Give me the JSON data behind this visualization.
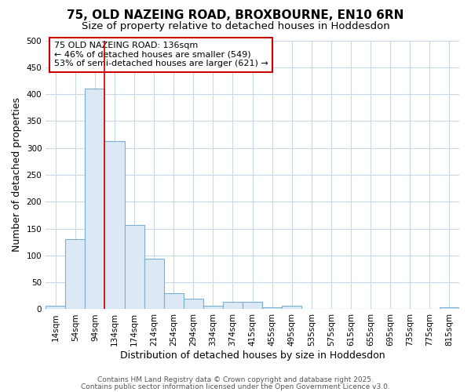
{
  "title1": "75, OLD NAZEING ROAD, BROXBOURNE, EN10 6RN",
  "title2": "Size of property relative to detached houses in Hoddesdon",
  "xlabel": "Distribution of detached houses by size in Hoddesdon",
  "ylabel": "Number of detached properties",
  "bar_labels": [
    "14sqm",
    "54sqm",
    "94sqm",
    "134sqm",
    "174sqm",
    "214sqm",
    "254sqm",
    "294sqm",
    "334sqm",
    "374sqm",
    "415sqm",
    "455sqm",
    "495sqm",
    "535sqm",
    "575sqm",
    "615sqm",
    "655sqm",
    "695sqm",
    "735sqm",
    "775sqm",
    "815sqm"
  ],
  "bar_values": [
    6,
    131,
    410,
    313,
    157,
    94,
    30,
    19,
    7,
    14,
    14,
    4,
    7,
    0,
    0,
    0,
    0,
    0,
    0,
    0,
    4
  ],
  "bar_color": "#dce9f5",
  "bar_edge_color": "#7aafd4",
  "vline_x": 2.5,
  "vline_color": "#cc0000",
  "annotation_text": "75 OLD NAZEING ROAD: 136sqm\n← 46% of detached houses are smaller (549)\n53% of semi-detached houses are larger (621) →",
  "annotation_box_color": "#ffffff",
  "annotation_edge_color": "#cc0000",
  "ylim": [
    0,
    500
  ],
  "yticks": [
    0,
    50,
    100,
    150,
    200,
    250,
    300,
    350,
    400,
    450,
    500
  ],
  "bg_color": "#ffffff",
  "grid_color": "#c8d8e8",
  "footer1": "Contains HM Land Registry data © Crown copyright and database right 2025.",
  "footer2": "Contains public sector information licensed under the Open Government Licence v3.0.",
  "title_fontsize": 11,
  "subtitle_fontsize": 9.5,
  "axis_label_fontsize": 9,
  "tick_fontsize": 7.5,
  "annotation_fontsize": 8,
  "footer_fontsize": 6.5
}
